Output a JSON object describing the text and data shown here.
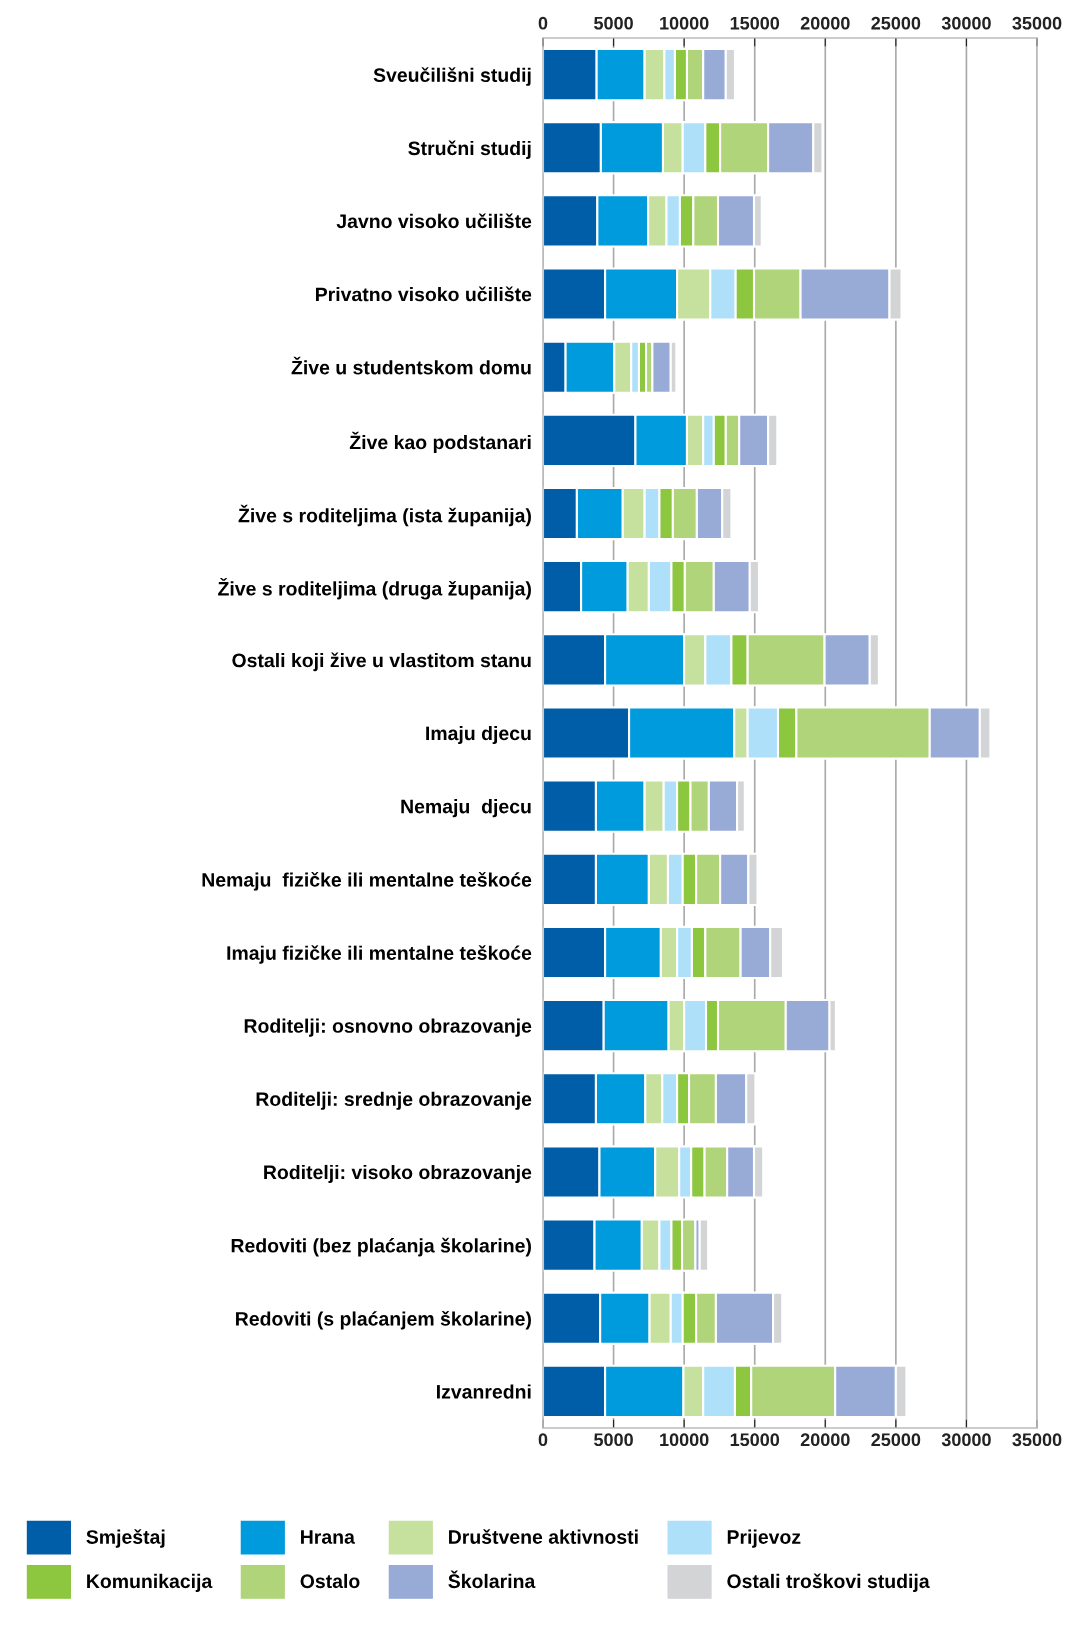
{
  "chart_data": {
    "type": "bar",
    "orientation": "horizontal",
    "stacked": true,
    "categories": [
      "Sveučilišni studij",
      "Stručni studij",
      "Javno visoko učilište",
      "Privatno visoko učilište",
      "Žive u studentskom domu",
      "Žive kao podstanari",
      "Žive s roditeljima (ista županija)",
      "Žive s roditeljima (druga županija)",
      "Ostali koji žive u vlastitom stanu",
      "Imaju djecu",
      "Nemaju  djecu",
      "Nemaju  fizičke ili mentalne teškoće",
      "Imaju fizičke ili mentalne teškoće",
      "Roditelji: osnovno obrazovanje",
      "Roditelji: srednje obrazovanje",
      "Roditelji: visoko obrazovanje",
      "Redoviti (bez plaćanja školarine)",
      "Redoviti (s plaćanjem školarine)",
      "Izvanredni"
    ],
    "series": [
      {
        "name": "Smještaj",
        "color": "#005ea8",
        "values": [
          3800,
          4100,
          3850,
          4400,
          1600,
          6550,
          2400,
          2700,
          4400,
          6100,
          3750,
          3750,
          4400,
          4300,
          3750,
          4000,
          3650,
          4050,
          4400
        ]
      },
      {
        "name": "Hrana",
        "color": "#009bdd",
        "values": [
          3400,
          4400,
          3600,
          5100,
          3450,
          3650,
          3250,
          3300,
          5600,
          7450,
          3450,
          3750,
          3950,
          4600,
          3500,
          3950,
          3350,
          3500,
          5550
        ]
      },
      {
        "name": "Društvene aktivnosti",
        "color": "#c6e09e",
        "values": [
          1400,
          1400,
          1300,
          2350,
          1200,
          1150,
          1550,
          1500,
          1500,
          950,
          1350,
          1350,
          1150,
          1100,
          1200,
          1700,
          1250,
          1500,
          1400
        ]
      },
      {
        "name": "Prijevoz",
        "color": "#aee0fa",
        "values": [
          750,
          1600,
          950,
          1800,
          550,
          750,
          1050,
          1600,
          1850,
          2150,
          950,
          1050,
          1050,
          1550,
          1050,
          850,
          850,
          850,
          2250
        ]
      },
      {
        "name": "Komunikacija",
        "color": "#8dc63f",
        "values": [
          850,
          1050,
          950,
          1300,
          500,
          850,
          950,
          950,
          1150,
          1300,
          950,
          950,
          950,
          850,
          850,
          950,
          750,
          950,
          1150
        ]
      },
      {
        "name": "Ostalo",
        "color": "#b0d47a",
        "values": [
          1150,
          3400,
          1750,
          3300,
          450,
          950,
          1700,
          2050,
          5450,
          9450,
          1300,
          1700,
          2500,
          4800,
          1900,
          1600,
          950,
          1400,
          5950
        ]
      },
      {
        "name": "Školarina",
        "color": "#98aad6",
        "values": [
          1600,
          3200,
          2550,
          6300,
          1300,
          2050,
          1800,
          2550,
          3200,
          3550,
          2000,
          2000,
          2100,
          3100,
          2150,
          1900,
          300,
          4050,
          4300
        ]
      },
      {
        "name": "Ostali troškovi studija",
        "color": "#d3d4d6",
        "values": [
          650,
          650,
          550,
          850,
          400,
          650,
          650,
          650,
          650,
          750,
          550,
          650,
          900,
          450,
          650,
          650,
          600,
          650,
          750
        ]
      }
    ],
    "xlim": [
      0,
      35000
    ],
    "xticks": [
      0,
      5000,
      10000,
      15000,
      20000,
      25000,
      30000,
      35000
    ],
    "x2lim": [
      0,
      35000
    ],
    "x2ticks": [
      0,
      5000,
      10000,
      15000,
      20000,
      25000,
      30000,
      35000
    ],
    "grid": "x",
    "legend": "bottom"
  }
}
